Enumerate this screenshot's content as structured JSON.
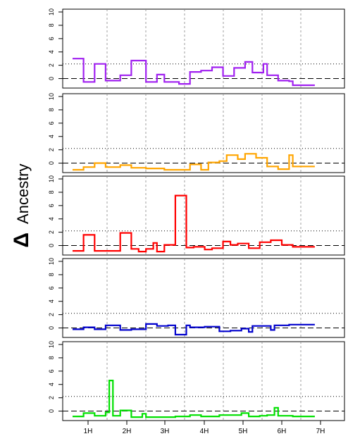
{
  "chart_data": {
    "type": "step-line",
    "ylabel_symbol": "Δ",
    "ylabel_text": "Ancestry",
    "x_tick_labels": [
      "1H",
      "2H",
      "3H",
      "4H",
      "5H",
      "6H",
      "7H"
    ],
    "x_range": [
      0,
      7.6
    ],
    "panels": [
      {
        "color": "#a020f0",
        "ylim": [
          -1,
          10
        ],
        "yticks": [
          0,
          2,
          4,
          6,
          8,
          10
        ],
        "threshold": 2.2,
        "reference": 0,
        "segments": [
          [
            0.0,
            0.3,
            3.0
          ],
          [
            0.3,
            0.6,
            -0.5
          ],
          [
            0.6,
            0.9,
            2.2
          ],
          [
            0.9,
            1.3,
            -0.3
          ],
          [
            1.3,
            1.6,
            0.5
          ],
          [
            1.6,
            2.0,
            2.7
          ],
          [
            2.0,
            2.3,
            -0.5
          ],
          [
            2.3,
            2.5,
            0.6
          ],
          [
            2.5,
            2.9,
            -0.5
          ],
          [
            2.9,
            3.2,
            -0.8
          ],
          [
            3.2,
            3.5,
            1.0
          ],
          [
            3.5,
            3.8,
            1.2
          ],
          [
            3.8,
            4.1,
            1.7
          ],
          [
            4.1,
            4.4,
            0.4
          ],
          [
            4.4,
            4.7,
            1.6
          ],
          [
            4.7,
            4.9,
            2.5
          ],
          [
            4.9,
            5.2,
            0.9
          ],
          [
            5.2,
            5.3,
            2.2
          ],
          [
            5.3,
            5.6,
            0.5
          ],
          [
            5.6,
            5.9,
            -0.3
          ],
          [
            5.9,
            6.0,
            -0.4
          ],
          [
            6.0,
            6.6,
            -1.0
          ]
        ]
      },
      {
        "color": "#ffa500",
        "ylim": [
          -1,
          10
        ],
        "yticks": [
          0,
          2,
          4,
          6,
          8,
          10
        ],
        "threshold": 2.2,
        "reference": 0,
        "segments": [
          [
            0.0,
            0.3,
            -1.0
          ],
          [
            0.3,
            0.6,
            -0.6
          ],
          [
            0.6,
            0.9,
            0.0
          ],
          [
            0.9,
            1.3,
            -0.6
          ],
          [
            1.3,
            1.6,
            -0.3
          ],
          [
            1.6,
            2.0,
            -0.7
          ],
          [
            2.0,
            2.5,
            -0.8
          ],
          [
            2.5,
            3.0,
            -1.0
          ],
          [
            3.0,
            3.2,
            -1.0
          ],
          [
            3.2,
            3.5,
            -0.2
          ],
          [
            3.5,
            3.7,
            -1.0
          ],
          [
            3.7,
            4.0,
            0.1
          ],
          [
            4.0,
            4.2,
            0.3
          ],
          [
            4.2,
            4.5,
            1.2
          ],
          [
            4.5,
            4.7,
            0.6
          ],
          [
            4.7,
            5.0,
            1.4
          ],
          [
            5.0,
            5.3,
            0.8
          ],
          [
            5.3,
            5.6,
            -0.5
          ],
          [
            5.6,
            5.9,
            -0.9
          ],
          [
            5.9,
            6.0,
            1.2
          ],
          [
            6.0,
            6.6,
            -0.5
          ]
        ]
      },
      {
        "color": "#ff0000",
        "ylim": [
          -1,
          10
        ],
        "yticks": [
          0,
          2,
          4,
          6,
          8,
          10
        ],
        "threshold": 2.2,
        "reference": 0,
        "segments": [
          [
            0.0,
            0.3,
            -0.8
          ],
          [
            0.3,
            0.6,
            1.6
          ],
          [
            0.6,
            1.0,
            -0.8
          ],
          [
            1.0,
            1.3,
            -0.8
          ],
          [
            1.3,
            1.6,
            1.9
          ],
          [
            1.6,
            1.8,
            -0.5
          ],
          [
            1.8,
            2.0,
            -0.9
          ],
          [
            2.0,
            2.2,
            -0.5
          ],
          [
            2.2,
            2.3,
            0.4
          ],
          [
            2.3,
            2.5,
            -0.9
          ],
          [
            2.5,
            2.8,
            0.1
          ],
          [
            2.8,
            3.1,
            7.5
          ],
          [
            3.1,
            3.3,
            -0.3
          ],
          [
            3.3,
            3.6,
            -0.2
          ],
          [
            3.6,
            3.8,
            -0.6
          ],
          [
            3.8,
            4.1,
            -0.4
          ],
          [
            4.1,
            4.3,
            0.6
          ],
          [
            4.3,
            4.5,
            0.1
          ],
          [
            4.5,
            4.8,
            0.3
          ],
          [
            4.8,
            5.1,
            -0.4
          ],
          [
            5.1,
            5.4,
            0.5
          ],
          [
            5.4,
            5.7,
            0.8
          ],
          [
            5.7,
            6.0,
            0.1
          ],
          [
            6.0,
            6.6,
            -0.2
          ]
        ]
      },
      {
        "color": "#0000cd",
        "ylim": [
          -1,
          10
        ],
        "yticks": [
          0,
          2,
          4,
          6,
          8,
          10
        ],
        "threshold": 2.2,
        "reference": 0,
        "segments": [
          [
            0.0,
            0.3,
            -0.2
          ],
          [
            0.3,
            0.6,
            0.1
          ],
          [
            0.6,
            0.9,
            -0.2
          ],
          [
            0.9,
            1.3,
            0.4
          ],
          [
            1.3,
            1.6,
            -0.3
          ],
          [
            1.6,
            2.0,
            -0.2
          ],
          [
            2.0,
            2.3,
            0.6
          ],
          [
            2.3,
            2.6,
            0.3
          ],
          [
            2.6,
            2.8,
            0.4
          ],
          [
            2.8,
            3.1,
            -1.0
          ],
          [
            3.1,
            3.2,
            0.4
          ],
          [
            3.2,
            3.6,
            0.1
          ],
          [
            3.6,
            4.0,
            0.2
          ],
          [
            4.0,
            4.3,
            -0.5
          ],
          [
            4.3,
            4.6,
            -0.4
          ],
          [
            4.6,
            4.8,
            -0.1
          ],
          [
            4.8,
            4.9,
            -0.6
          ],
          [
            4.9,
            5.4,
            0.3
          ],
          [
            5.4,
            5.5,
            -0.3
          ],
          [
            5.5,
            5.9,
            0.4
          ],
          [
            5.9,
            6.0,
            0.5
          ],
          [
            6.0,
            6.6,
            0.5
          ]
        ]
      },
      {
        "color": "#00e000",
        "ylim": [
          -1,
          10
        ],
        "yticks": [
          0,
          2,
          4,
          6,
          8,
          10
        ],
        "threshold": 2.2,
        "reference": 0,
        "segments": [
          [
            0.0,
            0.3,
            -0.8
          ],
          [
            0.3,
            0.6,
            -0.3
          ],
          [
            0.6,
            0.9,
            -0.7
          ],
          [
            0.9,
            1.0,
            -0.2
          ],
          [
            1.0,
            1.1,
            4.6
          ],
          [
            1.1,
            1.3,
            -0.7
          ],
          [
            1.3,
            1.6,
            0.1
          ],
          [
            1.6,
            1.9,
            -0.9
          ],
          [
            1.9,
            2.0,
            -0.4
          ],
          [
            2.0,
            2.5,
            -0.9
          ],
          [
            2.5,
            2.8,
            -0.9
          ],
          [
            2.8,
            3.2,
            -0.8
          ],
          [
            3.2,
            3.5,
            -0.6
          ],
          [
            3.5,
            4.0,
            -0.8
          ],
          [
            4.0,
            4.3,
            -0.6
          ],
          [
            4.3,
            4.6,
            -0.6
          ],
          [
            4.6,
            4.8,
            -0.3
          ],
          [
            4.8,
            5.1,
            -0.8
          ],
          [
            5.1,
            5.3,
            -0.7
          ],
          [
            5.3,
            5.5,
            -0.6
          ],
          [
            5.5,
            5.6,
            0.5
          ],
          [
            5.6,
            6.0,
            -0.7
          ],
          [
            6.0,
            6.6,
            -0.8
          ]
        ]
      }
    ]
  }
}
